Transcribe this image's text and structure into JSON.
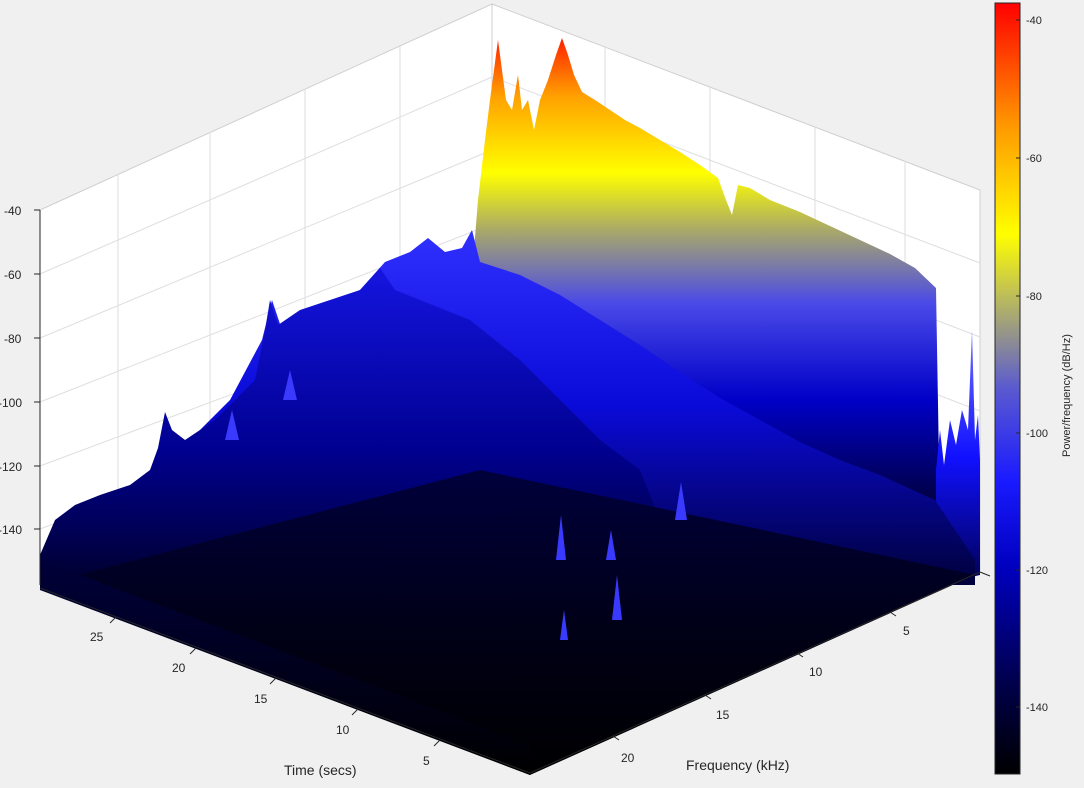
{
  "chart_data": {
    "type": "surface",
    "title": "",
    "xlabel": "Frequency (kHz)",
    "ylabel": "Time (secs)",
    "zlabel": "",
    "colorbar_label": "Power/frequency (dB/Hz)",
    "colormap": "black-blue-yellow-red",
    "colors": [
      "#000000",
      "#0000ff",
      "#ffff00",
      "#ff0000"
    ],
    "x_ticks": [
      "5",
      "10",
      "15",
      "20"
    ],
    "y_ticks": [
      "5",
      "10",
      "15",
      "20",
      "25"
    ],
    "z_ticks": [
      "-40",
      "-60",
      "-80",
      "-100",
      "-120",
      "-140"
    ],
    "colorbar_ticks": [
      "-40",
      "-60",
      "-80",
      "-100",
      "-120",
      "-140"
    ],
    "xlim": [
      0,
      22
    ],
    "ylim": [
      0,
      28
    ],
    "zlim": [
      -150,
      -40
    ],
    "clim": [
      -150,
      -37
    ],
    "grid": true,
    "peak_value": -37,
    "floor_value": -150
  }
}
